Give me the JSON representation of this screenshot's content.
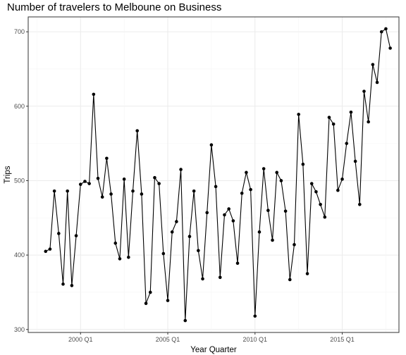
{
  "chart_data": {
    "type": "line",
    "title": "Number of travelers to Melboune on Business",
    "xlabel": "Year Quarter",
    "ylabel": "Trips",
    "x_tick_labels": [
      "2000 Q1",
      "2005 Q1",
      "2010 Q1",
      "2015 Q1"
    ],
    "y_tick_labels": [
      "300",
      "400",
      "500",
      "600",
      "700"
    ],
    "ylim": [
      296,
      720
    ],
    "xlim": [
      "1997 Q1",
      "2018 Q2"
    ],
    "grid": true,
    "markers": true,
    "colors": {
      "line": "#000000",
      "panel_border": "#333333",
      "grid_major": "#ebebeb",
      "grid_minor": "#f5f5f5"
    },
    "series": [
      {
        "x": [
          "1998 Q1",
          "1998 Q2",
          "1998 Q3",
          "1998 Q4",
          "1999 Q1",
          "1999 Q2",
          "1999 Q3",
          "1999 Q4",
          "2000 Q1",
          "2000 Q2",
          "2000 Q3",
          "2000 Q4",
          "2001 Q1",
          "2001 Q2",
          "2001 Q3",
          "2001 Q4",
          "2002 Q1",
          "2002 Q2",
          "2002 Q3",
          "2002 Q4",
          "2003 Q1",
          "2003 Q2",
          "2003 Q3",
          "2003 Q4",
          "2004 Q1",
          "2004 Q2",
          "2004 Q3",
          "2004 Q4",
          "2005 Q1",
          "2005 Q2",
          "2005 Q3",
          "2005 Q4",
          "2006 Q1",
          "2006 Q2",
          "2006 Q3",
          "2006 Q4",
          "2007 Q1",
          "2007 Q2",
          "2007 Q3",
          "2007 Q4",
          "2008 Q1",
          "2008 Q2",
          "2008 Q3",
          "2008 Q4",
          "2009 Q1",
          "2009 Q2",
          "2009 Q3",
          "2009 Q4",
          "2010 Q1",
          "2010 Q2",
          "2010 Q3",
          "2010 Q4",
          "2011 Q1",
          "2011 Q2",
          "2011 Q3",
          "2011 Q4",
          "2012 Q1",
          "2012 Q2",
          "2012 Q3",
          "2012 Q4",
          "2013 Q1",
          "2013 Q2",
          "2013 Q3",
          "2013 Q4",
          "2014 Q1",
          "2014 Q2",
          "2014 Q3",
          "2014 Q4",
          "2015 Q1",
          "2015 Q2",
          "2015 Q3",
          "2015 Q4",
          "2016 Q1",
          "2016 Q2",
          "2016 Q3",
          "2016 Q4",
          "2017 Q1",
          "2017 Q2",
          "2017 Q3",
          "2017 Q4"
        ],
        "values": [
          405,
          408,
          486,
          429,
          361,
          486,
          359,
          426,
          495,
          499,
          496,
          616,
          503,
          478,
          530,
          482,
          416,
          395,
          502,
          397,
          486,
          567,
          482,
          335,
          350,
          504,
          496,
          402,
          339,
          431,
          445,
          515,
          312,
          425,
          486,
          406,
          368,
          457,
          548,
          492,
          370,
          454,
          462,
          446,
          389,
          483,
          511,
          488,
          318,
          431,
          516,
          460,
          420,
          511,
          500,
          459,
          367,
          414,
          589,
          522,
          375,
          496,
          485,
          468,
          451,
          585,
          576,
          487,
          502,
          550,
          592,
          526,
          468,
          620,
          579,
          656,
          632,
          700,
          704,
          678
        ]
      }
    ]
  }
}
